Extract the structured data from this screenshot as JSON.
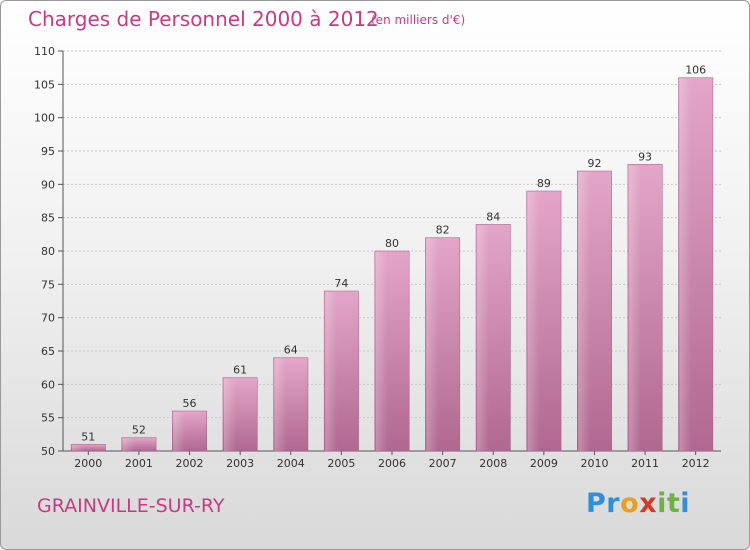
{
  "title": "Charges de Personnel 2000 à 2012",
  "subtitle": "(en milliers d'€)",
  "commune": "GRAINVILLE-SUR-RY",
  "logo": {
    "letters": [
      "P",
      "r",
      "o",
      "x",
      "i",
      "t",
      "i"
    ],
    "colors": [
      "#2f8fd8",
      "#2f8fd8",
      "#e8a020",
      "#d43a2a",
      "#6cb33f",
      "#6cb33f",
      "#2f8fd8"
    ]
  },
  "colors": {
    "bar": "#d88fba",
    "bar_dark": "#b0608e",
    "text_accent": "#c43c83"
  },
  "chart_data": {
    "type": "bar",
    "title": "Charges de Personnel 2000 à 2012",
    "xlabel": "",
    "ylabel": "",
    "categories": [
      "2000",
      "2001",
      "2002",
      "2003",
      "2004",
      "2005",
      "2006",
      "2007",
      "2008",
      "2009",
      "2010",
      "2011",
      "2012"
    ],
    "values": [
      51,
      52,
      56,
      61,
      64,
      74,
      80,
      82,
      84,
      89,
      92,
      93,
      106
    ],
    "ylim": [
      50,
      110
    ],
    "yticks": [
      50,
      55,
      60,
      65,
      70,
      75,
      80,
      85,
      90,
      95,
      100,
      105,
      110
    ],
    "grid": true
  }
}
